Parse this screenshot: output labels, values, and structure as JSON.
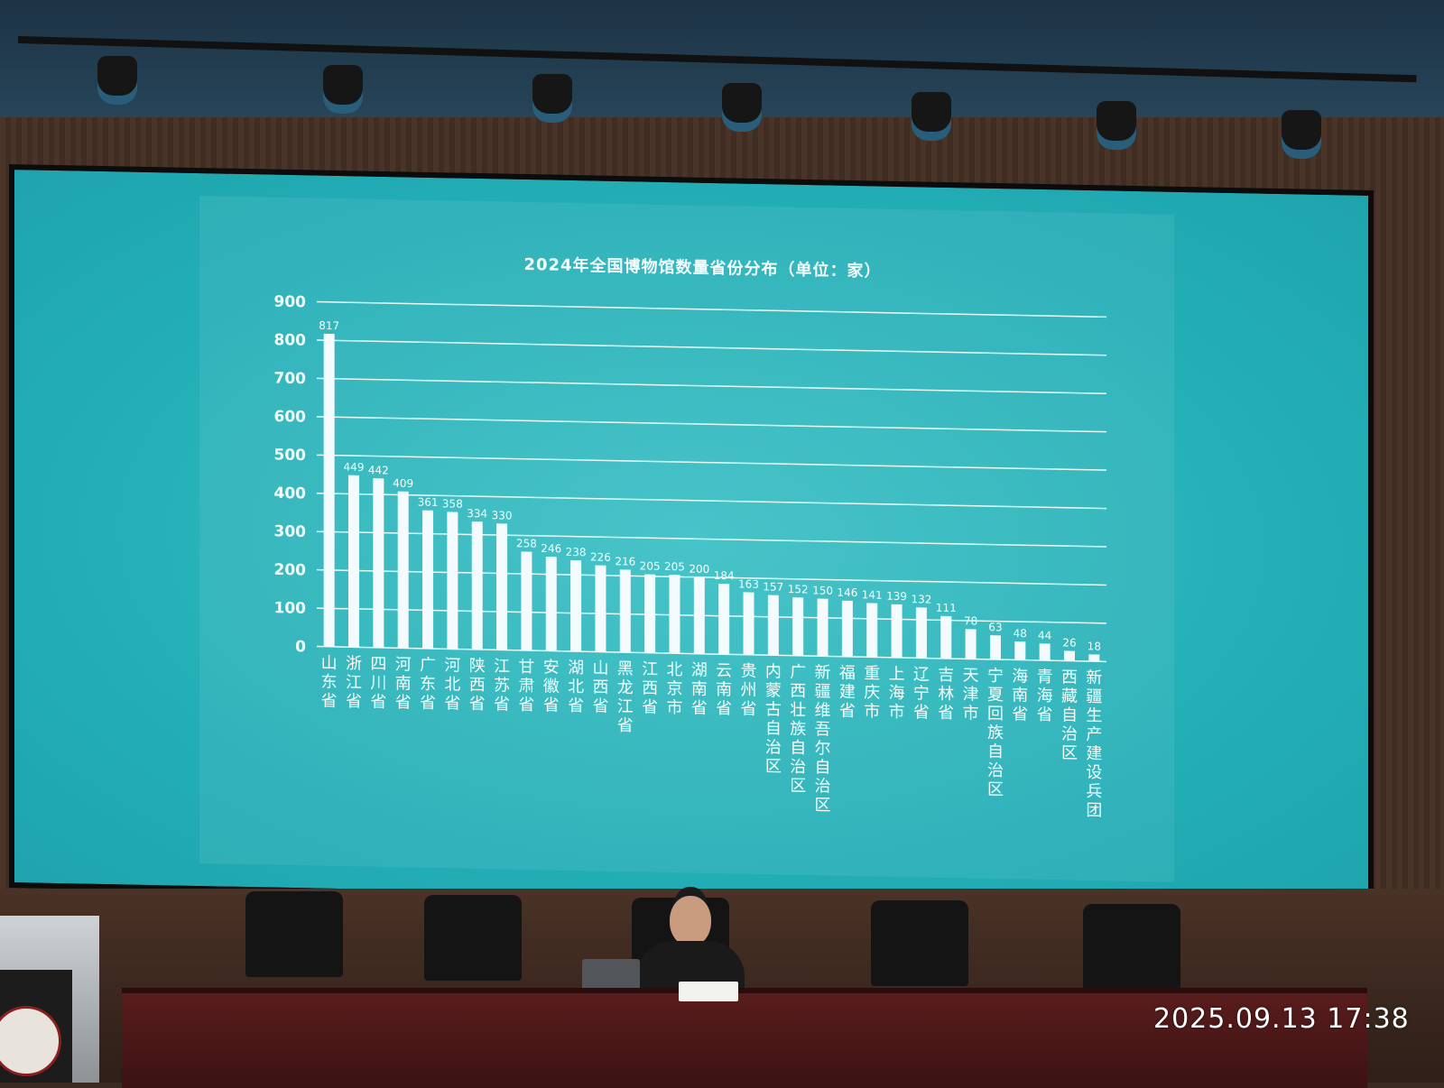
{
  "chart_data": {
    "type": "bar",
    "title": "2024年全国博物馆数量省份分布（单位：家）",
    "xlabel": "",
    "ylabel": "",
    "ylim": [
      0,
      900
    ],
    "yticks": [
      0,
      100,
      200,
      300,
      400,
      500,
      600,
      700,
      800,
      900
    ],
    "grid": true,
    "categories": [
      "山东省",
      "浙江省",
      "四川省",
      "河南省",
      "广东省",
      "河北省",
      "陕西省",
      "江苏省",
      "甘肃省",
      "安徽省",
      "湖北省",
      "山西省",
      "黑龙江省",
      "江西省",
      "北京市",
      "湖南省",
      "云南省",
      "贵州省",
      "内蒙古自治区",
      "广西壮族自治区",
      "新疆维吾尔自治区",
      "福建省",
      "重庆市",
      "上海市",
      "辽宁省",
      "吉林省",
      "天津市",
      "宁夏回族自治区",
      "海南省",
      "青海省",
      "西藏自治区",
      "新疆生产建设兵团"
    ],
    "values": [
      817,
      449,
      442,
      409,
      361,
      358,
      334,
      330,
      258,
      246,
      238,
      226,
      216,
      205,
      205,
      200,
      184,
      163,
      157,
      152,
      150,
      146,
      141,
      139,
      132,
      111,
      78,
      63,
      48,
      44,
      26,
      18
    ]
  },
  "overlay": {
    "timestamp": "2025.09.13 17:38"
  }
}
